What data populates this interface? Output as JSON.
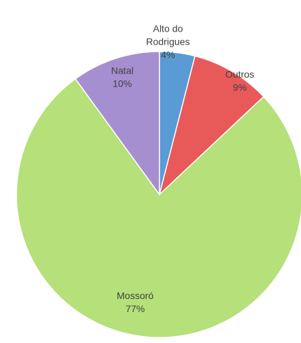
{
  "chart_data": {
    "type": "pie",
    "title": "",
    "slices": [
      {
        "label": "Alto do Rodrigues",
        "value": 4,
        "value_label": "4%",
        "color": "#5b9bd5"
      },
      {
        "label": "Outros",
        "value": 9,
        "value_label": "9%",
        "color": "#e85a5a"
      },
      {
        "label": "Mossoró",
        "value": 77,
        "value_label": "77%",
        "color": "#b5e07a"
      },
      {
        "label": "Natal",
        "value": 10,
        "value_label": "10%",
        "color": "#a68fd0"
      }
    ],
    "start_angle_deg": 0,
    "direction": "clockwise",
    "legend": "none"
  }
}
